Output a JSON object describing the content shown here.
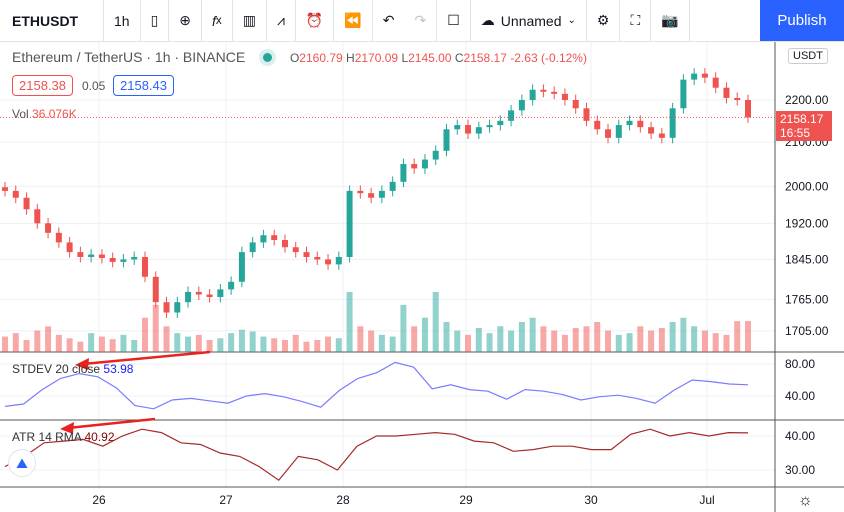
{
  "toolbar": {
    "symbol": "ETHUSDT",
    "interval": "1h",
    "layout_name": "Unnamed",
    "publish": "Publish",
    "icons": [
      "candles-icon",
      "add-compare-icon",
      "indicators-icon",
      "financials-icon",
      "templates-icon",
      "alert-icon",
      "replay-icon",
      "undo-icon",
      "redo-icon",
      "layout-icon",
      "cloud-icon",
      "chevron-down-icon",
      "settings-icon",
      "fullscreen-icon",
      "snapshot-icon"
    ]
  },
  "legend": {
    "title": "Ethereum / TetherUS · 1h · BINANCE",
    "o_label": "O",
    "o": "2160.79",
    "h_label": "H",
    "h": "2170.09",
    "l_label": "L",
    "l": "2145.00",
    "c_label": "C",
    "c": "2158.17",
    "change": "-2.63 (-0.12%)",
    "bid": "2158.38",
    "spread": "0.05",
    "ask": "2158.43",
    "vol_label": "Vol",
    "vol": "36.076K"
  },
  "indicators": {
    "stdev_label": "STDEV 20 close",
    "stdev_value": "53.98",
    "atr_label": "ATR 14 RMA",
    "atr_value": "40.92"
  },
  "price_axis": {
    "currency": "USDT",
    "labels": [
      "2200.00",
      "2100.00",
      "2000.00",
      "1920.00",
      "1845.00",
      "1765.00",
      "1705.00"
    ],
    "last_price": "2158.17",
    "countdown": "16:55"
  },
  "stdev_axis": [
    "80.00",
    "40.00"
  ],
  "atr_axis": [
    "40.00",
    "30.00"
  ],
  "time_axis": [
    "26",
    "27",
    "28",
    "29",
    "30",
    "Jul"
  ],
  "colors": {
    "up": "#26a69a",
    "down": "#ef5350",
    "stdev": "#7b7bff",
    "atr": "#a52a2a",
    "accent": "#2962ff",
    "annotation": "#e8231f"
  },
  "chart_data": {
    "type": "candlestick",
    "y_scale": "log",
    "closes": [
      1990,
      1975,
      1950,
      1920,
      1900,
      1880,
      1860,
      1850,
      1855,
      1848,
      1840,
      1845,
      1850,
      1810,
      1760,
      1740,
      1760,
      1780,
      1775,
      1770,
      1785,
      1800,
      1860,
      1880,
      1895,
      1885,
      1870,
      1860,
      1850,
      1845,
      1835,
      1850,
      1990,
      1985,
      1975,
      1990,
      2010,
      2050,
      2040,
      2060,
      2080,
      2130,
      2140,
      2120,
      2135,
      2140,
      2150,
      2175,
      2200,
      2225,
      2220,
      2215,
      2200,
      2180,
      2150,
      2130,
      2110,
      2140,
      2150,
      2135,
      2120,
      2110,
      2180,
      2250,
      2265,
      2255,
      2230,
      2205,
      2200,
      2158.17
    ],
    "volumes_k": [
      18,
      22,
      14,
      25,
      30,
      20,
      16,
      12,
      22,
      18,
      15,
      20,
      14,
      40,
      55,
      30,
      22,
      18,
      20,
      14,
      16,
      22,
      26,
      24,
      18,
      16,
      14,
      20,
      12,
      14,
      18,
      16,
      70,
      30,
      25,
      20,
      18,
      55,
      30,
      40,
      70,
      35,
      25,
      20,
      28,
      22,
      30,
      25,
      35,
      40,
      30,
      25,
      20,
      28,
      30,
      35,
      25,
      20,
      22,
      30,
      25,
      28,
      35,
      40,
      30,
      25,
      22,
      20,
      36,
      36.076
    ],
    "stdev": [
      27,
      30,
      48,
      62,
      68,
      64,
      50,
      28,
      24,
      35,
      37,
      34,
      31,
      40,
      43,
      39,
      33,
      26,
      47,
      62,
      69,
      82,
      76,
      49,
      54,
      48,
      46,
      36,
      48,
      46,
      42,
      35,
      39,
      41,
      37,
      31,
      47,
      60,
      58,
      55,
      53.98
    ],
    "atr": [
      31,
      34,
      38,
      38.5,
      39,
      37,
      40,
      42,
      41,
      38,
      37.5,
      35,
      34,
      31,
      27,
      34,
      33,
      30,
      37,
      40,
      40,
      40.5,
      41,
      40.5,
      38.5,
      38,
      35.5,
      36,
      37,
      37,
      36,
      36,
      40.5,
      42,
      40,
      41,
      40,
      41,
      40.92
    ]
  }
}
